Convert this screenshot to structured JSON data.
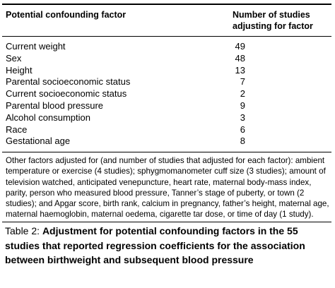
{
  "table": {
    "header": {
      "left": "Potential confounding factor",
      "right": "Number of studies adjusting for factor"
    },
    "rows": [
      {
        "factor": "Current weight",
        "count": "49"
      },
      {
        "factor": "Sex",
        "count": "48"
      },
      {
        "factor": "Height",
        "count": "13"
      },
      {
        "factor": "Parental socioeconomic status",
        "count": "7"
      },
      {
        "factor": "Current socioeconomic status",
        "count": "2"
      },
      {
        "factor": "Parental blood pressure",
        "count": "9"
      },
      {
        "factor": "Alcohol consumption",
        "count": "3"
      },
      {
        "factor": "Race",
        "count": "6"
      },
      {
        "factor": "Gestational age",
        "count": "8"
      }
    ],
    "footnote": "Other factors adjusted for (and number of studies that adjusted for each factor): ambient temperature or exercise (4 studies); sphygmomanometer cuff size (3 studies); amount of television watched, anticipated venepuncture, heart rate, maternal body-mass index, parity, person who measured blood pressure, Tanner’s stage of puberty, or town (2 studies); and Apgar score, birth rank, calcium in pregnancy, father’s height, maternal age, maternal haemoglobin, maternal oedema, cigarette tar dose, or time of day (1 study)."
  },
  "caption": {
    "label": "Table 2: ",
    "text": "Adjustment for potential confounding factors in the 55 studies that reported regression coefficients for the association between birthweight and subsequent blood pressure"
  }
}
